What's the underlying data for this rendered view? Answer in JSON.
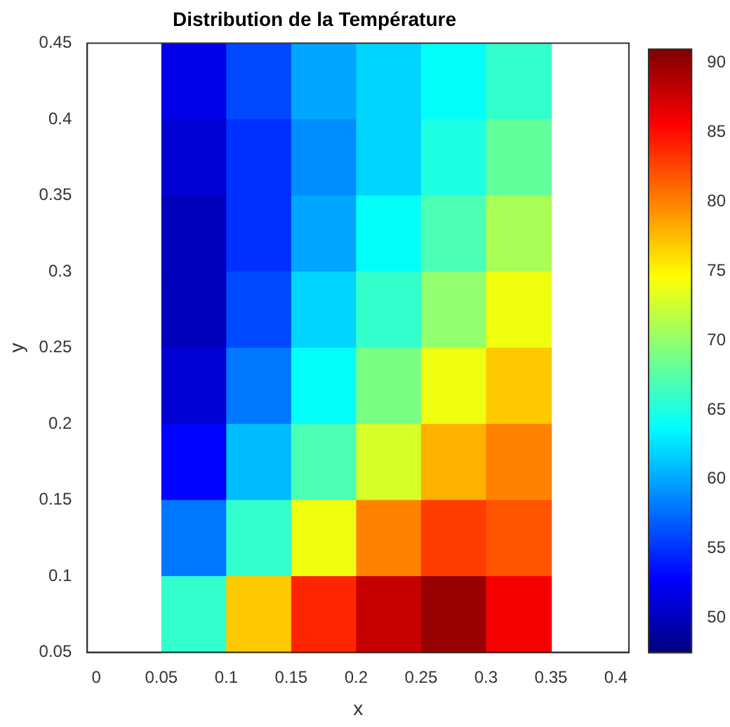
{
  "chart_data": {
    "type": "heatmap",
    "title": "Distribution de la Température",
    "xlabel": "x",
    "ylabel": "y",
    "x": [
      0.075,
      0.125,
      0.175,
      0.225,
      0.275,
      0.325
    ],
    "cells": [
      [
        52,
        56,
        60,
        62,
        64,
        66
      ],
      [
        51,
        55,
        59,
        62,
        65,
        68
      ],
      [
        50,
        55,
        60,
        64,
        67,
        71
      ],
      [
        50,
        56,
        62,
        66,
        70,
        74
      ],
      [
        51,
        58,
        64,
        69,
        74,
        77
      ],
      [
        53,
        61,
        67,
        73,
        78,
        80
      ],
      [
        58,
        66,
        74,
        80,
        83,
        82
      ],
      [
        66,
        77,
        84,
        88,
        90,
        86
      ]
    ],
    "xlim": [
      -0.007,
      0.41
    ],
    "xticks": [
      0,
      0.05,
      0.1,
      0.15,
      0.2,
      0.25,
      0.3,
      0.35,
      0.4
    ],
    "ylim": [
      0.05,
      0.45
    ],
    "yticks": [
      0.05,
      0.1,
      0.15,
      0.2,
      0.25,
      0.3,
      0.35,
      0.4,
      0.45
    ],
    "clim": [
      47.5,
      91
    ],
    "cticks": [
      50,
      55,
      60,
      65,
      70,
      75,
      80,
      85,
      90
    ],
    "grid": false
  }
}
